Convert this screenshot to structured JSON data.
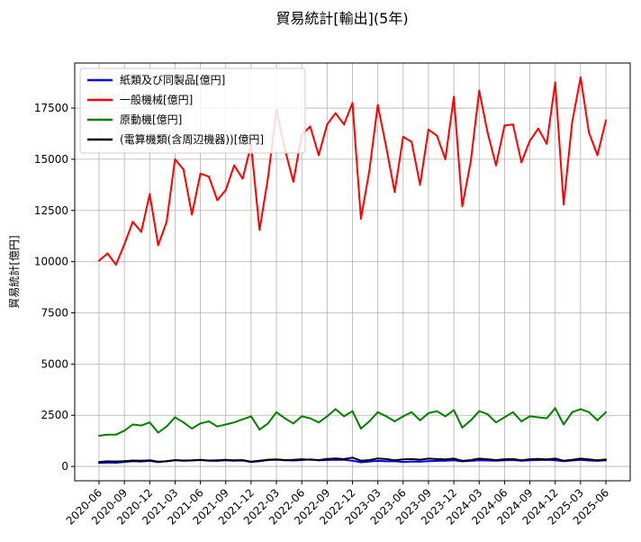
{
  "chart_data": {
    "type": "line",
    "title": "貿易統計[輸出](5年)",
    "xlabel": "",
    "ylabel": "貿易統計[億円]",
    "ylim": [
      -700,
      19700
    ],
    "yticks": [
      0,
      2500,
      5000,
      7500,
      10000,
      12500,
      15000,
      17500
    ],
    "grid": true,
    "legend_position": "top-left",
    "x": [
      "2020-06",
      "2020-07",
      "2020-08",
      "2020-09",
      "2020-10",
      "2020-11",
      "2020-12",
      "2021-01",
      "2021-02",
      "2021-03",
      "2021-04",
      "2021-05",
      "2021-06",
      "2021-07",
      "2021-08",
      "2021-09",
      "2021-10",
      "2021-11",
      "2021-12",
      "2022-01",
      "2022-02",
      "2022-03",
      "2022-04",
      "2022-05",
      "2022-06",
      "2022-07",
      "2022-08",
      "2022-09",
      "2022-10",
      "2022-11",
      "2022-12",
      "2023-01",
      "2023-02",
      "2023-03",
      "2023-04",
      "2023-05",
      "2023-06",
      "2023-07",
      "2023-08",
      "2023-09",
      "2023-10",
      "2023-11",
      "2023-12",
      "2024-01",
      "2024-02",
      "2024-03",
      "2024-04",
      "2024-05",
      "2024-06",
      "2024-07",
      "2024-08",
      "2024-09",
      "2024-10",
      "2024-11",
      "2024-12",
      "2025-01",
      "2025-02",
      "2025-03",
      "2025-04",
      "2025-05",
      "2025-06"
    ],
    "xtick_labels": [
      "2020-06",
      "2020-09",
      "2020-12",
      "2021-03",
      "2021-06",
      "2021-09",
      "2021-12",
      "2022-03",
      "2022-06",
      "2022-09",
      "2022-12",
      "2023-03",
      "2023-06",
      "2023-09",
      "2023-12",
      "2024-03",
      "2024-06",
      "2024-09",
      "2024-12",
      "2025-03",
      "2025-06"
    ],
    "series": [
      {
        "name": "紙類及び同製品[億円]",
        "color": "#0000ff",
        "values": [
          170,
          190,
          180,
          220,
          260,
          240,
          270,
          210,
          260,
          300,
          280,
          290,
          310,
          280,
          270,
          300,
          280,
          290,
          220,
          260,
          310,
          330,
          300,
          290,
          310,
          340,
          300,
          310,
          330,
          320,
          280,
          200,
          240,
          270,
          250,
          260,
          220,
          240,
          230,
          260,
          270,
          280,
          300,
          250,
          270,
          300,
          290,
          280,
          300,
          310,
          280,
          300,
          310,
          320,
          300,
          260,
          290,
          320,
          290,
          270,
          300
        ]
      },
      {
        "name": "一般機械[億円]",
        "color": "#ff0000",
        "values": [
          10050,
          10400,
          9850,
          10850,
          11950,
          11450,
          13300,
          10800,
          11950,
          15000,
          14500,
          12300,
          14300,
          14150,
          13000,
          13500,
          14700,
          14050,
          15700,
          11550,
          14100,
          17400,
          15500,
          13900,
          16200,
          16600,
          15200,
          16700,
          17250,
          16700,
          17750,
          12100,
          14450,
          17650,
          15600,
          13400,
          16100,
          15850,
          13750,
          16450,
          16150,
          15000,
          18050,
          12700,
          14900,
          18350,
          16300,
          14700,
          16650,
          16700,
          14850,
          15900,
          16500,
          15750,
          18750,
          12800,
          16800,
          19000,
          16300,
          15200,
          16900
        ]
      },
      {
        "name": "原動機[億円]",
        "color": "#008000",
        "values": [
          1500,
          1550,
          1550,
          1750,
          2050,
          2000,
          2150,
          1650,
          1950,
          2400,
          2150,
          1850,
          2100,
          2200,
          1950,
          2050,
          2150,
          2300,
          2450,
          1800,
          2100,
          2650,
          2350,
          2100,
          2450,
          2350,
          2150,
          2450,
          2800,
          2450,
          2700,
          1850,
          2200,
          2650,
          2450,
          2200,
          2450,
          2650,
          2250,
          2600,
          2700,
          2450,
          2750,
          1900,
          2250,
          2700,
          2550,
          2150,
          2400,
          2650,
          2200,
          2450,
          2400,
          2350,
          2850,
          2050,
          2650,
          2800,
          2650,
          2250,
          2650
        ]
      },
      {
        "name": "(電算機類(含周辺機器))[億円]",
        "color": "#000000",
        "values": [
          220,
          250,
          240,
          260,
          290,
          280,
          300,
          230,
          250,
          310,
          290,
          300,
          320,
          290,
          300,
          320,
          300,
          310,
          230,
          280,
          330,
          340,
          310,
          320,
          350,
          330,
          310,
          370,
          390,
          360,
          430,
          280,
          310,
          390,
          360,
          300,
          340,
          360,
          330,
          380,
          360,
          340,
          380,
          270,
          310,
          380,
          350,
          310,
          350,
          360,
          300,
          350,
          370,
          340,
          380,
          280,
          320,
          380,
          340,
          300,
          340
        ]
      }
    ]
  }
}
